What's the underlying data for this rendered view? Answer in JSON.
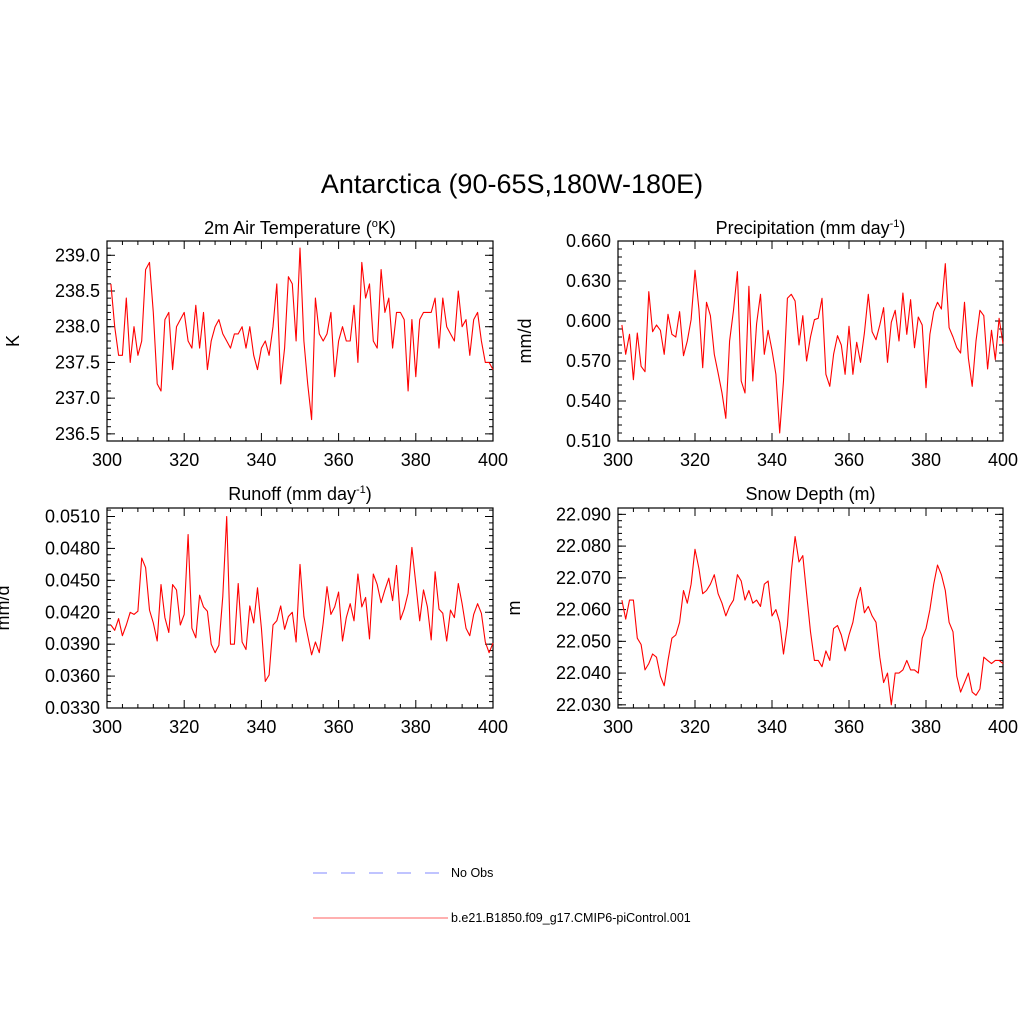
{
  "main_title": "Antarctica (90-65S,180W-180E)",
  "chart_data": [
    {
      "type": "line",
      "title": "2m Air Temperature (",
      "title_sup": "o",
      "title_after": "K)",
      "xlabel": "",
      "ylabel": "K",
      "xlim": [
        300,
        400
      ],
      "ylim": [
        236.4,
        239.2
      ],
      "xticks": [
        300,
        320,
        340,
        360,
        380,
        400
      ],
      "xtick_labels": [
        "300",
        "320",
        "340",
        "360",
        "380",
        "400"
      ],
      "yticks": [
        236.5,
        237.0,
        237.5,
        238.0,
        238.5,
        239.0
      ],
      "ytick_labels": [
        "236.5",
        "237.0",
        "237.5",
        "238.0",
        "238.5",
        "239.0"
      ],
      "yminor": 0.1,
      "series": [
        {
          "name": "b.e21.B1850.f09_g17.CMIP6-piControl.001",
          "x": [
            301,
            302,
            303,
            304,
            305,
            306,
            307,
            308,
            309,
            310,
            311,
            312,
            313,
            314,
            315,
            316,
            317,
            318,
            319,
            320,
            321,
            322,
            323,
            324,
            325,
            326,
            327,
            328,
            329,
            330,
            331,
            332,
            333,
            334,
            335,
            336,
            337,
            338,
            339,
            340,
            341,
            342,
            343,
            344,
            345,
            346,
            347,
            348,
            349,
            350,
            351,
            352,
            353,
            354,
            355,
            356,
            357,
            358,
            359,
            360,
            361,
            362,
            363,
            364,
            365,
            366,
            367,
            368,
            369,
            370,
            371,
            372,
            373,
            374,
            375,
            376,
            377,
            378,
            379,
            380,
            381,
            382,
            383,
            384,
            385,
            386,
            387,
            388,
            389,
            390,
            391,
            392,
            393,
            394,
            395,
            396,
            397,
            398,
            399,
            400
          ],
          "values": [
            238.6,
            238.0,
            237.6,
            237.6,
            238.4,
            237.5,
            238.0,
            237.6,
            237.8,
            238.8,
            238.9,
            238.2,
            237.2,
            237.1,
            238.1,
            238.2,
            237.4,
            238.0,
            238.1,
            238.2,
            237.8,
            237.7,
            238.3,
            237.7,
            238.2,
            237.4,
            237.8,
            238.0,
            238.1,
            237.9,
            237.8,
            237.7,
            237.9,
            237.9,
            238.0,
            237.7,
            238.0,
            237.6,
            237.4,
            237.7,
            237.8,
            237.6,
            238.0,
            238.6,
            237.2,
            237.7,
            238.7,
            238.6,
            237.8,
            239.1,
            237.8,
            237.2,
            236.7,
            238.4,
            237.9,
            237.8,
            237.9,
            238.2,
            237.3,
            237.8,
            238.0,
            237.8,
            237.8,
            238.3,
            237.5,
            238.9,
            238.4,
            238.6,
            237.8,
            237.7,
            238.8,
            238.2,
            238.4,
            237.7,
            238.2,
            238.2,
            238.1,
            237.1,
            238.1,
            237.3,
            238.1,
            238.2,
            238.2,
            238.2,
            238.4,
            237.7,
            238.4,
            238.0,
            237.9,
            237.8,
            238.5,
            238.0,
            238.1,
            237.6,
            238.1,
            238.2,
            237.8,
            237.5,
            237.5,
            237.4
          ]
        }
      ]
    },
    {
      "type": "line",
      "title": "Precipitation (mm day",
      "title_sup": "-1",
      "title_after": ")",
      "xlabel": "",
      "ylabel": "mm/d",
      "xlim": [
        300,
        400
      ],
      "ylim": [
        0.51,
        0.66
      ],
      "xticks": [
        300,
        320,
        340,
        360,
        380,
        400
      ],
      "xtick_labels": [
        "300",
        "320",
        "340",
        "360",
        "380",
        "400"
      ],
      "yticks": [
        0.51,
        0.54,
        0.57,
        0.6,
        0.63,
        0.66
      ],
      "ytick_labels": [
        "0.510",
        "0.540",
        "0.570",
        "0.600",
        "0.630",
        "0.660"
      ],
      "yminor": 0.006,
      "series": [
        {
          "name": "b.e21.B1850.f09_g17.CMIP6-piControl.001",
          "x": [
            301,
            302,
            303,
            304,
            305,
            306,
            307,
            308,
            309,
            310,
            311,
            312,
            313,
            314,
            315,
            316,
            317,
            318,
            319,
            320,
            321,
            322,
            323,
            324,
            325,
            326,
            327,
            328,
            329,
            330,
            331,
            332,
            333,
            334,
            335,
            336,
            337,
            338,
            339,
            340,
            341,
            342,
            343,
            344,
            345,
            346,
            347,
            348,
            349,
            350,
            351,
            352,
            353,
            354,
            355,
            356,
            357,
            358,
            359,
            360,
            361,
            362,
            363,
            364,
            365,
            366,
            367,
            368,
            369,
            370,
            371,
            372,
            373,
            374,
            375,
            376,
            377,
            378,
            379,
            380,
            381,
            382,
            383,
            384,
            385,
            386,
            387,
            388,
            389,
            390,
            391,
            392,
            393,
            394,
            395,
            396,
            397,
            398,
            399,
            400
          ],
          "values": [
            0.597,
            0.575,
            0.59,
            0.556,
            0.591,
            0.566,
            0.562,
            0.622,
            0.592,
            0.597,
            0.593,
            0.575,
            0.605,
            0.59,
            0.588,
            0.607,
            0.574,
            0.585,
            0.601,
            0.638,
            0.609,
            0.565,
            0.614,
            0.604,
            0.575,
            0.561,
            0.546,
            0.527,
            0.585,
            0.608,
            0.637,
            0.555,
            0.546,
            0.626,
            0.555,
            0.598,
            0.62,
            0.575,
            0.593,
            0.578,
            0.56,
            0.516,
            0.555,
            0.617,
            0.62,
            0.615,
            0.582,
            0.604,
            0.57,
            0.588,
            0.601,
            0.602,
            0.617,
            0.56,
            0.551,
            0.575,
            0.589,
            0.582,
            0.56,
            0.596,
            0.56,
            0.584,
            0.569,
            0.591,
            0.62,
            0.592,
            0.586,
            0.597,
            0.61,
            0.569,
            0.599,
            0.608,
            0.585,
            0.621,
            0.59,
            0.616,
            0.58,
            0.603,
            0.597,
            0.55,
            0.59,
            0.607,
            0.614,
            0.609,
            0.643,
            0.595,
            0.588,
            0.58,
            0.576,
            0.614,
            0.572,
            0.551,
            0.585,
            0.608,
            0.604,
            0.564,
            0.593,
            0.571,
            0.602,
            0.583
          ]
        }
      ]
    },
    {
      "type": "line",
      "title": "Runoff (mm day",
      "title_sup": "-1",
      "title_after": ")",
      "xlabel": "",
      "ylabel": "mm/d",
      "xlim": [
        300,
        400
      ],
      "ylim": [
        0.033,
        0.0518
      ],
      "xticks": [
        300,
        320,
        340,
        360,
        380,
        400
      ],
      "xtick_labels": [
        "300",
        "320",
        "340",
        "360",
        "380",
        "400"
      ],
      "yticks": [
        0.033,
        0.036,
        0.039,
        0.042,
        0.045,
        0.048,
        0.051
      ],
      "ytick_labels": [
        "0.0330",
        "0.0360",
        "0.0390",
        "0.0420",
        "0.0450",
        "0.0480",
        "0.0510"
      ],
      "yminor": 0.0006,
      "series": [
        {
          "name": "b.e21.B1850.f09_g17.CMIP6-piControl.001",
          "x": [
            301,
            302,
            303,
            304,
            305,
            306,
            307,
            308,
            309,
            310,
            311,
            312,
            313,
            314,
            315,
            316,
            317,
            318,
            319,
            320,
            321,
            322,
            323,
            324,
            325,
            326,
            327,
            328,
            329,
            330,
            331,
            332,
            333,
            334,
            335,
            336,
            337,
            338,
            339,
            340,
            341,
            342,
            343,
            344,
            345,
            346,
            347,
            348,
            349,
            350,
            351,
            352,
            353,
            354,
            355,
            356,
            357,
            358,
            359,
            360,
            361,
            362,
            363,
            364,
            365,
            366,
            367,
            368,
            369,
            370,
            371,
            372,
            373,
            374,
            375,
            376,
            377,
            378,
            379,
            380,
            381,
            382,
            383,
            384,
            385,
            386,
            387,
            388,
            389,
            390,
            391,
            392,
            393,
            394,
            395,
            396,
            397,
            398,
            399,
            400
          ],
          "values": [
            0.0408,
            0.0403,
            0.0414,
            0.0398,
            0.0408,
            0.042,
            0.0418,
            0.0421,
            0.0471,
            0.0462,
            0.0422,
            0.041,
            0.0393,
            0.0446,
            0.0415,
            0.0401,
            0.0446,
            0.0441,
            0.0408,
            0.0418,
            0.0493,
            0.0405,
            0.0396,
            0.0436,
            0.0425,
            0.0421,
            0.039,
            0.0382,
            0.0389,
            0.0435,
            0.051,
            0.039,
            0.039,
            0.0447,
            0.0392,
            0.0385,
            0.0426,
            0.041,
            0.0443,
            0.0405,
            0.0355,
            0.0361,
            0.0408,
            0.0412,
            0.0426,
            0.0404,
            0.0416,
            0.042,
            0.0392,
            0.0465,
            0.0416,
            0.0398,
            0.038,
            0.0392,
            0.0382,
            0.041,
            0.0444,
            0.0418,
            0.0425,
            0.0439,
            0.0393,
            0.0415,
            0.0428,
            0.0412,
            0.0456,
            0.0425,
            0.0434,
            0.0395,
            0.0456,
            0.0446,
            0.0429,
            0.0441,
            0.0452,
            0.0431,
            0.0464,
            0.0413,
            0.0423,
            0.0438,
            0.0481,
            0.0447,
            0.0412,
            0.0441,
            0.0425,
            0.0394,
            0.0458,
            0.0423,
            0.0419,
            0.0393,
            0.0422,
            0.0415,
            0.0447,
            0.0428,
            0.0405,
            0.0398,
            0.0418,
            0.0428,
            0.0419,
            0.0392,
            0.0382,
            0.0391
          ]
        }
      ]
    },
    {
      "type": "line",
      "title": "Snow Depth (m)",
      "title_sup": "",
      "title_after": "",
      "xlabel": "",
      "ylabel": "m",
      "xlim": [
        300,
        400
      ],
      "ylim": [
        22.029,
        22.092
      ],
      "xticks": [
        300,
        320,
        340,
        360,
        380,
        400
      ],
      "xtick_labels": [
        "300",
        "320",
        "340",
        "360",
        "380",
        "400"
      ],
      "yticks": [
        22.03,
        22.04,
        22.05,
        22.06,
        22.07,
        22.08,
        22.09
      ],
      "ytick_labels": [
        "22.030",
        "22.040",
        "22.050",
        "22.060",
        "22.070",
        "22.080",
        "22.090"
      ],
      "yminor": 0.002,
      "series": [
        {
          "name": "b.e21.B1850.f09_g17.CMIP6-piControl.001",
          "x": [
            301,
            302,
            303,
            304,
            305,
            306,
            307,
            308,
            309,
            310,
            311,
            312,
            313,
            314,
            315,
            316,
            317,
            318,
            319,
            320,
            321,
            322,
            323,
            324,
            325,
            326,
            327,
            328,
            329,
            330,
            331,
            332,
            333,
            334,
            335,
            336,
            337,
            338,
            339,
            340,
            341,
            342,
            343,
            344,
            345,
            346,
            347,
            348,
            349,
            350,
            351,
            352,
            353,
            354,
            355,
            356,
            357,
            358,
            359,
            360,
            361,
            362,
            363,
            364,
            365,
            366,
            367,
            368,
            369,
            370,
            371,
            372,
            373,
            374,
            375,
            376,
            377,
            378,
            379,
            380,
            381,
            382,
            383,
            384,
            385,
            386,
            387,
            388,
            389,
            390,
            391,
            392,
            393,
            394,
            395,
            396,
            397,
            398,
            399,
            400
          ],
          "values": [
            22.063,
            22.057,
            22.063,
            22.063,
            22.051,
            22.049,
            22.041,
            22.043,
            22.046,
            22.045,
            22.039,
            22.036,
            22.044,
            22.051,
            22.052,
            22.056,
            22.066,
            22.062,
            22.068,
            22.079,
            22.073,
            22.065,
            22.066,
            22.068,
            22.071,
            22.065,
            22.062,
            22.058,
            22.061,
            22.063,
            22.071,
            22.069,
            22.063,
            22.066,
            22.062,
            22.063,
            22.061,
            22.068,
            22.069,
            22.058,
            22.06,
            22.056,
            22.046,
            22.055,
            22.072,
            22.083,
            22.075,
            22.077,
            22.065,
            22.053,
            22.044,
            22.044,
            22.042,
            22.047,
            22.044,
            22.054,
            22.055,
            22.052,
            22.047,
            22.052,
            22.056,
            22.063,
            22.067,
            22.059,
            22.061,
            22.058,
            22.056,
            22.045,
            22.037,
            22.04,
            22.03,
            22.04,
            22.04,
            22.041,
            22.044,
            22.041,
            22.041,
            22.04,
            22.051,
            22.054,
            22.06,
            22.068,
            22.074,
            22.071,
            22.066,
            22.056,
            22.053,
            22.039,
            22.034,
            22.037,
            22.04,
            22.034,
            22.033,
            22.035,
            22.045,
            22.044,
            22.043,
            22.044,
            22.044,
            22.043
          ]
        }
      ]
    }
  ],
  "legend": {
    "items": [
      {
        "label": "No Obs",
        "color": "#8080ff",
        "style": "dashed"
      },
      {
        "label": "b.e21.B1850.f09_g17.CMIP6-piControl.001",
        "color": "#ff0000",
        "style": "solid"
      }
    ]
  },
  "colors": {
    "series": "#ff0000",
    "obs": "#9aa0ff",
    "axis": "#000000"
  }
}
